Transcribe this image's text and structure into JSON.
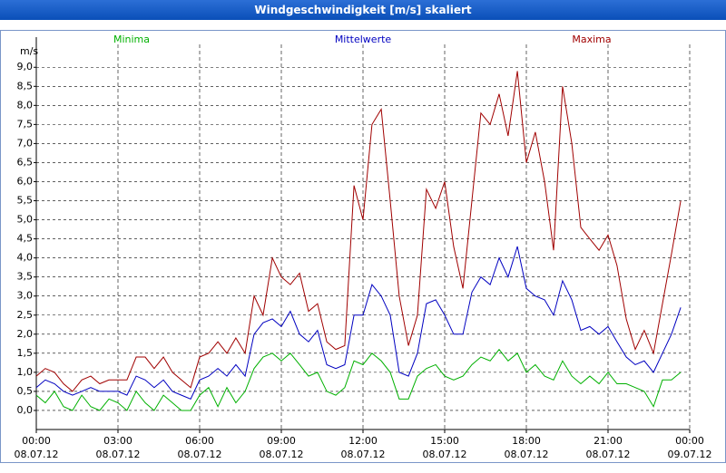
{
  "chart_data": {
    "type": "line",
    "title": "Windgeschwindigkeit [m/s] skaliert",
    "y_unit": "m/s",
    "x": [
      0,
      0.33,
      0.67,
      1,
      1.33,
      1.67,
      2,
      2.33,
      2.67,
      3,
      3.33,
      3.67,
      4,
      4.33,
      4.67,
      5,
      5.33,
      5.67,
      6,
      6.33,
      6.67,
      7,
      7.33,
      7.67,
      8,
      8.33,
      8.67,
      9,
      9.33,
      9.67,
      10,
      10.33,
      10.67,
      11,
      11.33,
      11.67,
      12,
      12.33,
      12.67,
      13,
      13.33,
      13.67,
      14,
      14.33,
      14.67,
      15,
      15.33,
      15.67,
      16,
      16.33,
      16.67,
      17,
      17.33,
      17.67,
      18,
      18.33,
      18.67,
      19,
      19.33,
      19.67,
      20,
      20.33,
      20.67,
      21,
      21.33,
      21.67,
      22,
      22.33,
      22.67,
      23,
      23.33,
      23.67
    ],
    "series": [
      {
        "name": "Minima",
        "color": "#00b000",
        "legend_position": "left",
        "values": [
          0.4,
          0.2,
          0.5,
          0.1,
          0.0,
          0.4,
          0.1,
          0.0,
          0.3,
          0.2,
          0.0,
          0.5,
          0.2,
          0.0,
          0.4,
          0.2,
          0.0,
          0.0,
          0.4,
          0.6,
          0.1,
          0.6,
          0.2,
          0.5,
          1.1,
          1.4,
          1.5,
          1.3,
          1.5,
          1.2,
          0.9,
          1.0,
          0.5,
          0.4,
          0.6,
          1.3,
          1.2,
          1.5,
          1.3,
          1.0,
          0.3,
          0.3,
          0.9,
          1.1,
          1.2,
          0.9,
          0.8,
          0.9,
          1.2,
          1.4,
          1.3,
          1.6,
          1.3,
          1.5,
          1.0,
          1.2,
          0.9,
          0.8,
          1.3,
          0.9,
          0.7,
          0.9,
          0.7,
          1.0,
          0.7,
          0.7,
          0.6,
          0.5,
          0.1,
          0.8,
          0.8,
          1.0
        ]
      },
      {
        "name": "Mittelwerte",
        "color": "#0000c0",
        "legend_position": "center",
        "values": [
          0.6,
          0.8,
          0.7,
          0.5,
          0.4,
          0.5,
          0.6,
          0.5,
          0.5,
          0.5,
          0.4,
          0.9,
          0.8,
          0.6,
          0.8,
          0.5,
          0.4,
          0.3,
          0.8,
          0.9,
          1.1,
          0.9,
          1.2,
          0.9,
          2.0,
          2.3,
          2.4,
          2.2,
          2.6,
          2.0,
          1.8,
          2.1,
          1.2,
          1.1,
          1.2,
          2.5,
          2.5,
          3.3,
          3.0,
          2.5,
          1.0,
          0.9,
          1.5,
          2.8,
          2.9,
          2.5,
          2.0,
          2.0,
          3.1,
          3.5,
          3.3,
          4.0,
          3.5,
          4.3,
          3.2,
          3.0,
          2.9,
          2.5,
          3.4,
          2.9,
          2.1,
          2.2,
          2.0,
          2.2,
          1.8,
          1.4,
          1.2,
          1.3,
          1.0,
          1.5,
          2.0,
          2.7
        ]
      },
      {
        "name": "Maxima",
        "color": "#a00000",
        "legend_position": "right",
        "values": [
          0.9,
          1.1,
          1.0,
          0.7,
          0.5,
          0.8,
          0.9,
          0.7,
          0.8,
          0.8,
          0.8,
          1.4,
          1.4,
          1.1,
          1.4,
          1.0,
          0.8,
          0.6,
          1.4,
          1.5,
          1.8,
          1.5,
          1.9,
          1.5,
          3.0,
          2.5,
          4.0,
          3.5,
          3.3,
          3.6,
          2.6,
          2.8,
          1.8,
          1.6,
          1.7,
          5.9,
          5.0,
          7.5,
          7.9,
          5.5,
          3.0,
          1.7,
          2.5,
          5.8,
          5.3,
          6.0,
          4.3,
          3.2,
          5.5,
          7.8,
          7.5,
          8.3,
          7.2,
          8.9,
          6.5,
          7.3,
          6.0,
          4.2,
          8.5,
          7.0,
          4.8,
          4.5,
          4.2,
          4.6,
          3.8,
          2.4,
          1.6,
          2.1,
          1.5,
          2.8,
          4.1,
          5.5
        ]
      }
    ],
    "xlim": [
      0,
      24
    ],
    "xticks": [
      {
        "value": 0,
        "label": "00:00"
      },
      {
        "value": 3,
        "label": "03:00"
      },
      {
        "value": 6,
        "label": "06:00"
      },
      {
        "value": 9,
        "label": "09:00"
      },
      {
        "value": 12,
        "label": "12:00"
      },
      {
        "value": 15,
        "label": "15:00"
      },
      {
        "value": 18,
        "label": "18:00"
      },
      {
        "value": 21,
        "label": "21:00"
      },
      {
        "value": 24,
        "label": "00:00"
      }
    ],
    "xtick_dates": [
      "08.07.12",
      "08.07.12",
      "08.07.12",
      "08.07.12",
      "08.07.12",
      "08.07.12",
      "08.07.12",
      "08.07.12",
      "09.07.12"
    ],
    "ylim": [
      -0.5,
      9.6
    ],
    "yticks": [
      {
        "value": 0,
        "label": "0,0"
      },
      {
        "value": 0.5,
        "label": "0,5"
      },
      {
        "value": 1,
        "label": "1,0"
      },
      {
        "value": 1.5,
        "label": "1,5"
      },
      {
        "value": 2,
        "label": "2,0"
      },
      {
        "value": 2.5,
        "label": "2,5"
      },
      {
        "value": 3,
        "label": "3,0"
      },
      {
        "value": 3.5,
        "label": "3,5"
      },
      {
        "value": 4,
        "label": "4,0"
      },
      {
        "value": 4.5,
        "label": "4,5"
      },
      {
        "value": 5,
        "label": "5,0"
      },
      {
        "value": 5.5,
        "label": "5,5"
      },
      {
        "value": 6,
        "label": "6,0"
      },
      {
        "value": 6.5,
        "label": "6,5"
      },
      {
        "value": 7,
        "label": "7,0"
      },
      {
        "value": 7.5,
        "label": "7,5"
      },
      {
        "value": 8,
        "label": "8,0"
      },
      {
        "value": 8.5,
        "label": "8,5"
      },
      {
        "value": 9,
        "label": "9,0"
      }
    ],
    "grid": true
  }
}
